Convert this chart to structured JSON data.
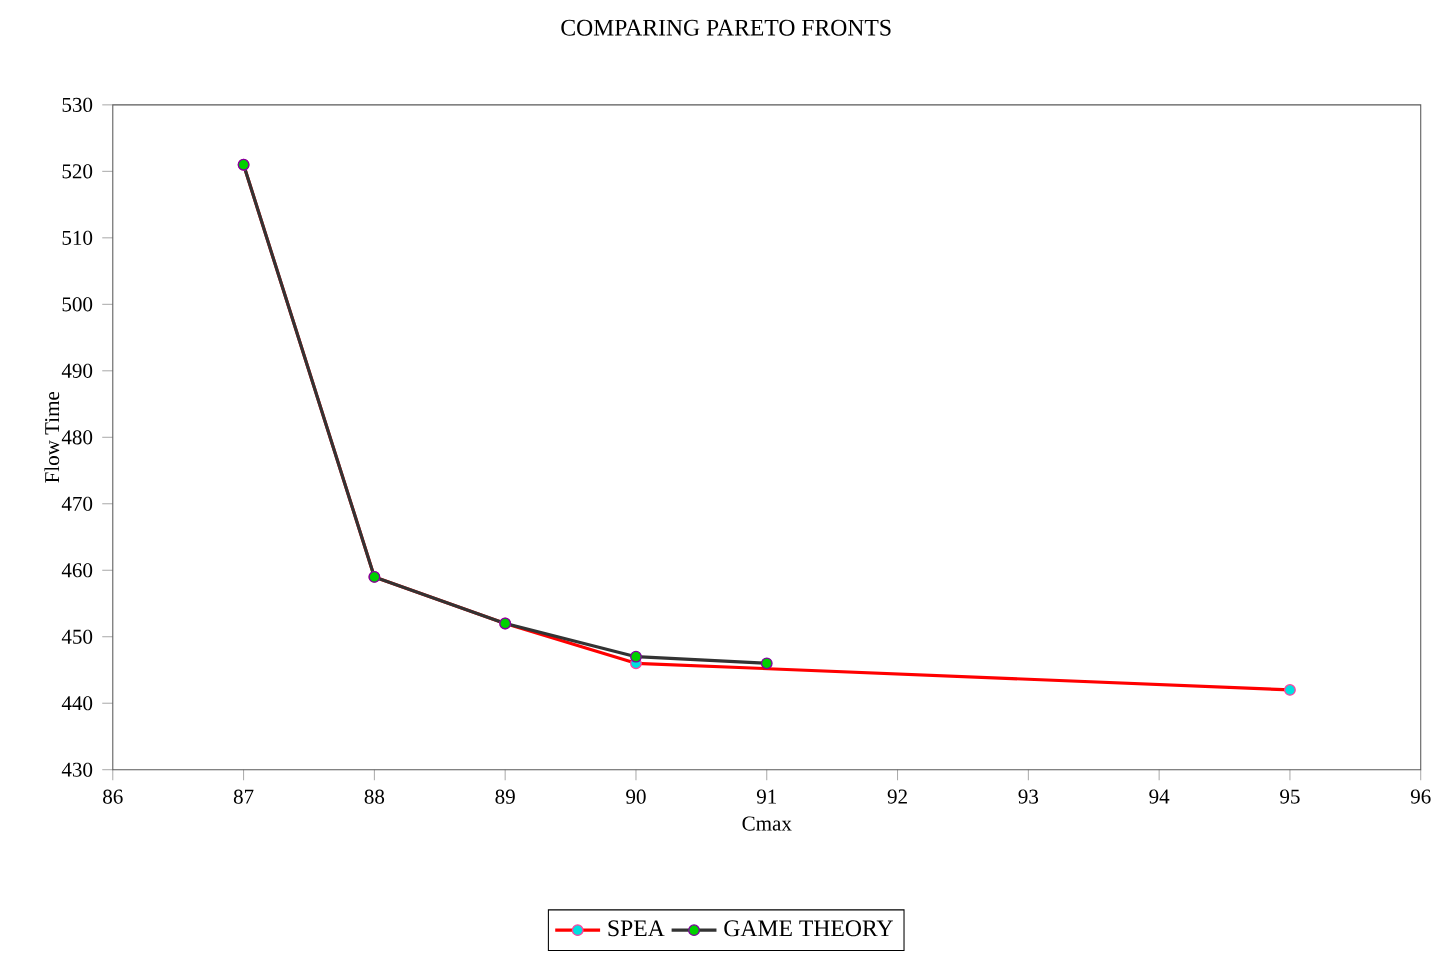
{
  "chart_data": {
    "type": "line",
    "title": "COMPARING PARETO FRONTS",
    "xlabel": "Cmax",
    "ylabel": "Flow Time",
    "xlim": [
      86,
      96
    ],
    "xticks": [
      86,
      87,
      88,
      89,
      90,
      91,
      92,
      93,
      94,
      95,
      96
    ],
    "ylim": [
      430,
      530
    ],
    "yticks": [
      430,
      440,
      450,
      460,
      470,
      480,
      490,
      500,
      510,
      520,
      530
    ],
    "series": [
      {
        "name": "SPEA",
        "color": "#ff0000",
        "x": [
          87,
          88,
          89,
          90,
          95
        ],
        "values": [
          521,
          459,
          452,
          446,
          442
        ]
      },
      {
        "name": "GAME THEORY",
        "color": "#333333",
        "x": [
          87,
          88,
          89,
          90,
          91
        ],
        "values": [
          521,
          459,
          452,
          447,
          446
        ]
      }
    ],
    "legend": "bottom",
    "marker": "circle",
    "line_style": "solid",
    "grid": false
  }
}
